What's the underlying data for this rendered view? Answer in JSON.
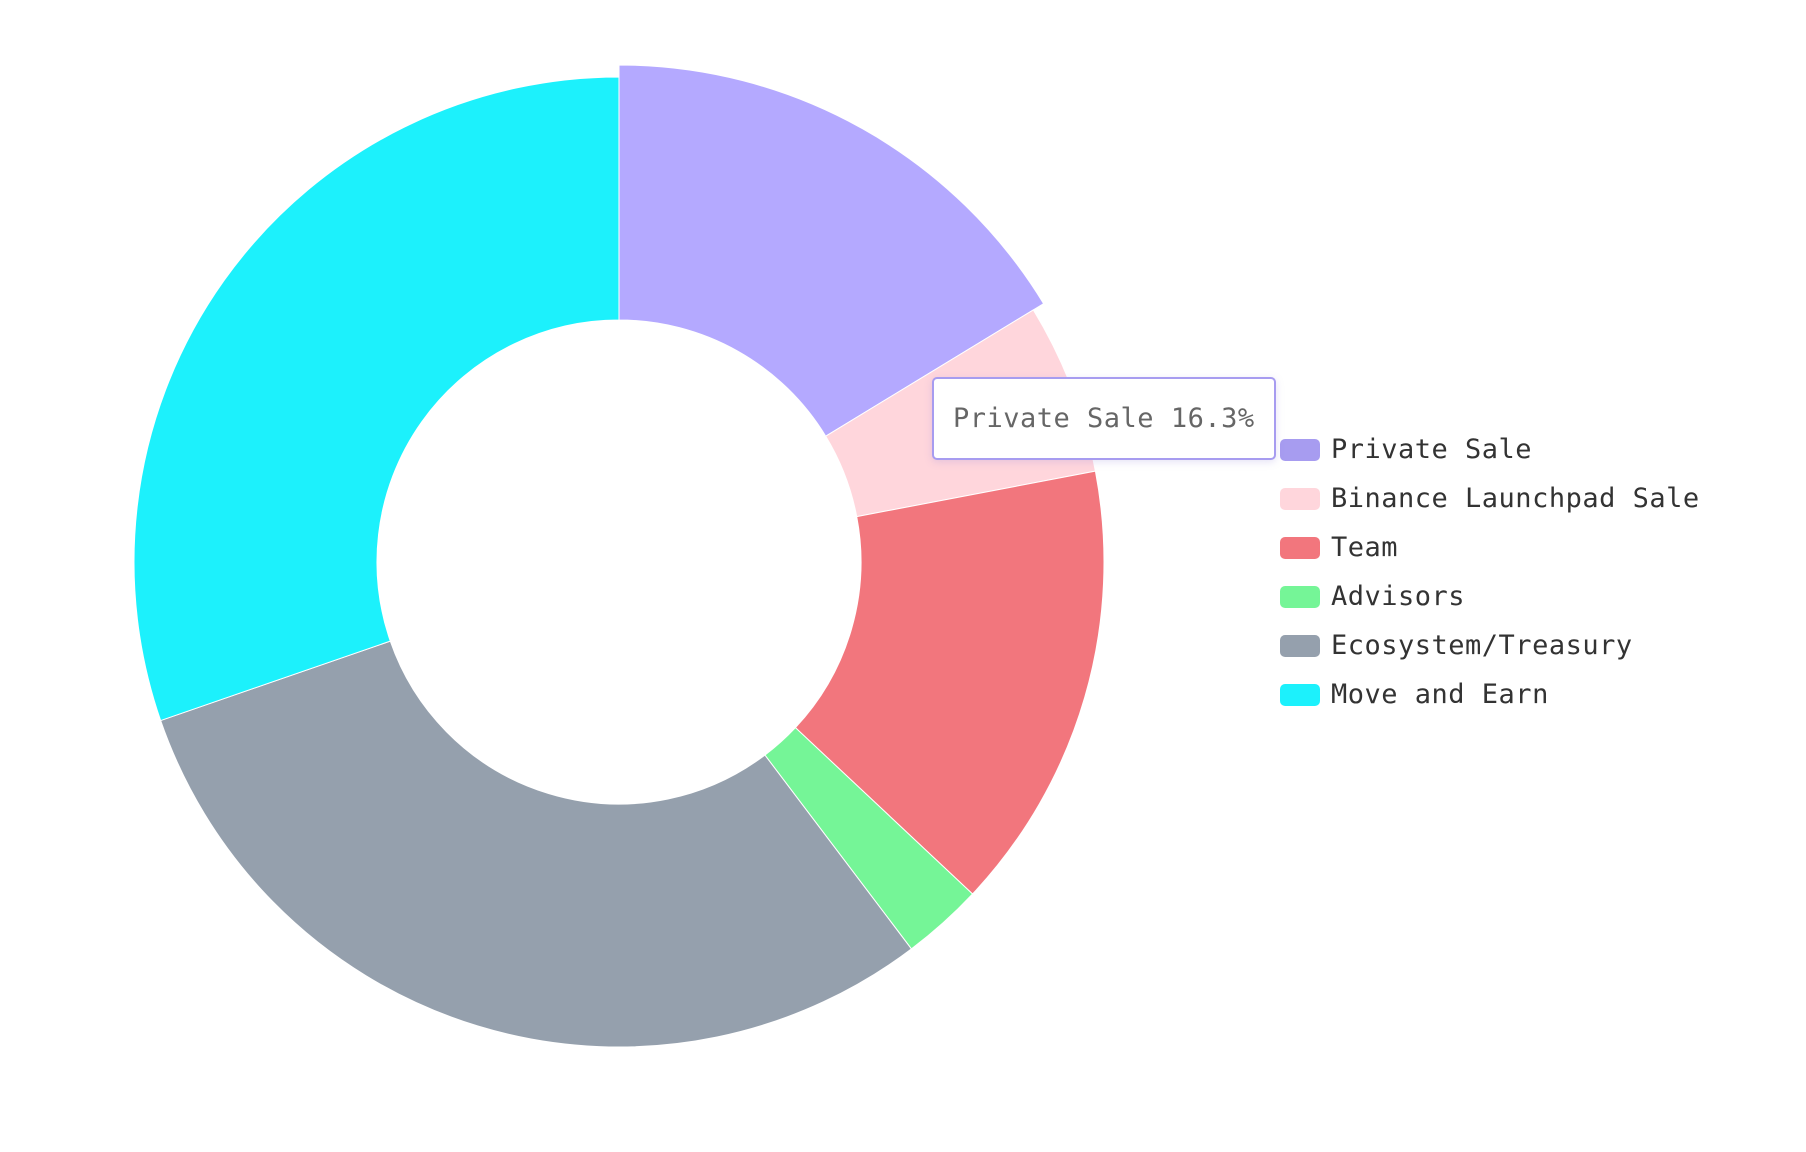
{
  "chart_data": {
    "type": "pie",
    "donut": true,
    "categories": [
      "Private Sale",
      "Binance Launchpad Sale",
      "Team",
      "Advisors",
      "Ecosystem/Treasury",
      "Move and Earn"
    ],
    "values": [
      16.3,
      5.7,
      15.0,
      2.7,
      30.0,
      30.3
    ],
    "colors": [
      "#b4a9ff",
      "#ffd6dc",
      "#f2767d",
      "#75f597",
      "#95a0ad",
      "#1cf1fc"
    ],
    "legend_colors": [
      "#a79cf0",
      "#ffd6dc",
      "#f2767d",
      "#75f597",
      "#95a0ad",
      "#1cf1fc"
    ],
    "legend_position": "right",
    "highlighted_index": 0,
    "tooltip": {
      "label": "Private Sale",
      "value": "16.3%"
    }
  }
}
